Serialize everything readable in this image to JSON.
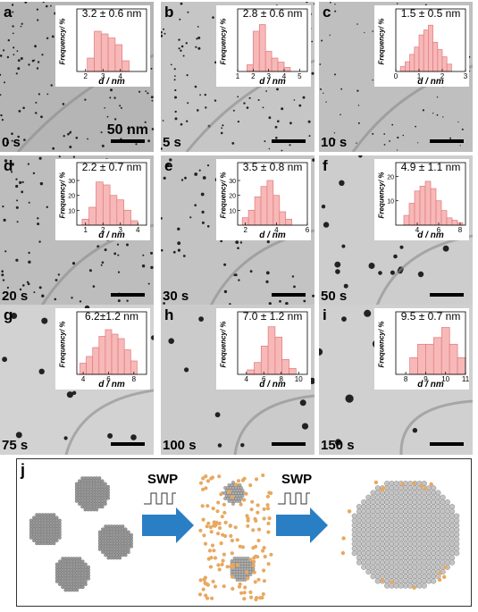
{
  "scale_bar_text": "50 nm",
  "freq_label": "Frequency/ %",
  "d_label": "d / nm",
  "panels": [
    {
      "label": "a",
      "time": "0 s",
      "stat": "3.2 ± 0.6 nm",
      "bg": "#b5b5b5",
      "xmin": 1.5,
      "xmax": 5.5,
      "xticks": [
        "2",
        "3",
        "4"
      ],
      "xtickvals": [
        2,
        3,
        4
      ],
      "yticks": [],
      "ymax": 40,
      "hist": [
        [
          2.3,
          10
        ],
        [
          2.7,
          30
        ],
        [
          3.1,
          28
        ],
        [
          3.5,
          25
        ],
        [
          3.9,
          20
        ],
        [
          4.3,
          8
        ]
      ]
    },
    {
      "label": "b",
      "time": "5 s",
      "stat": "2.8 ± 0.6 nm",
      "bg": "#c6c6c6",
      "xmin": 1,
      "xmax": 5.5,
      "xticks": [
        "1",
        "2",
        "3",
        "4",
        "5"
      ],
      "xtickvals": [
        1,
        2,
        3,
        4,
        5
      ],
      "yticks": [],
      "ymax": 40,
      "hist": [
        [
          1.8,
          5
        ],
        [
          2.2,
          30
        ],
        [
          2.6,
          35
        ],
        [
          3.0,
          15
        ],
        [
          3.4,
          10
        ],
        [
          3.8,
          7
        ],
        [
          4.2,
          3
        ]
      ]
    },
    {
      "label": "c",
      "time": "10 s",
      "stat": "1.5 ± 0.5 nm",
      "bg": "#bfbfbf",
      "xmin": 0,
      "xmax": 3,
      "xticks": [
        "0",
        "1",
        "2",
        "3"
      ],
      "xtickvals": [
        0,
        1,
        2,
        3
      ],
      "yticks": [],
      "ymax": 22,
      "hist": [
        [
          0.3,
          2
        ],
        [
          0.5,
          4
        ],
        [
          0.7,
          7
        ],
        [
          0.9,
          10
        ],
        [
          1.1,
          15
        ],
        [
          1.3,
          17
        ],
        [
          1.5,
          19
        ],
        [
          1.7,
          12
        ],
        [
          1.9,
          9
        ],
        [
          2.1,
          6
        ],
        [
          2.3,
          3
        ]
      ]
    },
    {
      "label": "d",
      "time": "20 s",
      "stat": "2.2 ± 0.7 nm",
      "bg": "#bdbdbd",
      "xmin": 0.5,
      "xmax": 4.5,
      "xticks": [
        "1",
        "2",
        "3",
        "4"
      ],
      "xtickvals": [
        1,
        2,
        3,
        4
      ],
      "yticks": [
        "10",
        "20",
        "30"
      ],
      "ytickvals": [
        10,
        20,
        30
      ],
      "ymax": 36,
      "hist": [
        [
          1.0,
          4
        ],
        [
          1.4,
          12
        ],
        [
          1.8,
          29
        ],
        [
          2.2,
          27
        ],
        [
          2.6,
          20
        ],
        [
          3.0,
          17
        ],
        [
          3.4,
          10
        ],
        [
          3.8,
          3
        ]
      ]
    },
    {
      "label": "e",
      "time": "30 s",
      "stat": "3.5 ± 0.8 nm",
      "bg": "#c3c3c3",
      "xmin": 1.5,
      "xmax": 6,
      "xticks": [
        "2",
        "4",
        "6"
      ],
      "xtickvals": [
        2,
        4,
        6
      ],
      "yticks": [
        "10",
        "20",
        "30"
      ],
      "ytickvals": [
        10,
        20,
        30
      ],
      "ymax": 36,
      "hist": [
        [
          2.0,
          5
        ],
        [
          2.4,
          10
        ],
        [
          2.8,
          19
        ],
        [
          3.2,
          26
        ],
        [
          3.6,
          30
        ],
        [
          4.0,
          20
        ],
        [
          4.4,
          9
        ],
        [
          4.8,
          4
        ]
      ]
    },
    {
      "label": "f",
      "time": "50 s",
      "stat": "4.9 ± 1.1 nm",
      "bg": "#cdcdcd",
      "xmin": 2,
      "xmax": 8.5,
      "xticks": [
        "4",
        "6",
        "8"
      ],
      "xtickvals": [
        4,
        6,
        8
      ],
      "yticks": [
        "10",
        "20"
      ],
      "ytickvals": [
        10,
        20
      ],
      "ymax": 22,
      "hist": [
        [
          3.0,
          4
        ],
        [
          3.5,
          9
        ],
        [
          4.0,
          14
        ],
        [
          4.5,
          16
        ],
        [
          5.0,
          18
        ],
        [
          5.5,
          15
        ],
        [
          6.0,
          10
        ],
        [
          6.5,
          6
        ],
        [
          7.0,
          3
        ],
        [
          7.5,
          2
        ],
        [
          8.0,
          1
        ]
      ]
    },
    {
      "label": "g",
      "time": "75 s",
      "stat": "6.2±1.2 nm",
      "bg": "#d2d2d2",
      "xmin": 3.5,
      "xmax": 9,
      "xticks": [
        "4",
        "6",
        "8"
      ],
      "xtickvals": [
        4,
        6,
        8
      ],
      "yticks": [],
      "ymax": 24,
      "hist": [
        [
          4.0,
          5
        ],
        [
          4.5,
          8
        ],
        [
          5.0,
          12
        ],
        [
          5.5,
          17
        ],
        [
          6.0,
          20
        ],
        [
          6.5,
          18
        ],
        [
          7.0,
          16
        ],
        [
          7.5,
          11
        ],
        [
          8.0,
          6
        ]
      ]
    },
    {
      "label": "h",
      "time": "100 s",
      "stat": "7.0 ± 1.2 nm",
      "bg": "#cbcbcb",
      "xmin": 3,
      "xmax": 11,
      "xticks": [
        "4",
        "6",
        "8",
        "10"
      ],
      "xtickvals": [
        4,
        6,
        8,
        10
      ],
      "yticks": [],
      "ymax": 36,
      "hist": [
        [
          4.5,
          3
        ],
        [
          5.3,
          8
        ],
        [
          6.1,
          19
        ],
        [
          6.9,
          32
        ],
        [
          7.7,
          25
        ],
        [
          8.5,
          10
        ],
        [
          9.3,
          4
        ]
      ]
    },
    {
      "label": "i",
      "time": "150 s",
      "stat": "9.5 ± 0.7 nm",
      "bg": "#d0d0d0",
      "xmin": 7.5,
      "xmax": 11,
      "xticks": [
        "8",
        "9",
        "10",
        "11"
      ],
      "xtickvals": [
        8,
        9,
        10,
        11
      ],
      "yticks": [],
      "ymax": 32,
      "hist": [
        [
          8.4,
          10
        ],
        [
          8.8,
          18
        ],
        [
          9.2,
          18
        ],
        [
          9.6,
          22
        ],
        [
          10.0,
          28
        ],
        [
          10.4,
          18
        ],
        [
          10.8,
          10
        ]
      ]
    }
  ],
  "panel_j": {
    "label": "j",
    "step1": "SWP",
    "step2": "SWP"
  },
  "colors": {
    "bar_fill": "#f7b8b8",
    "bar_stroke": "#e07a7a",
    "arrow": "#2a7fc4",
    "atom": "#e8a860",
    "cluster": "#8a8a8a"
  }
}
